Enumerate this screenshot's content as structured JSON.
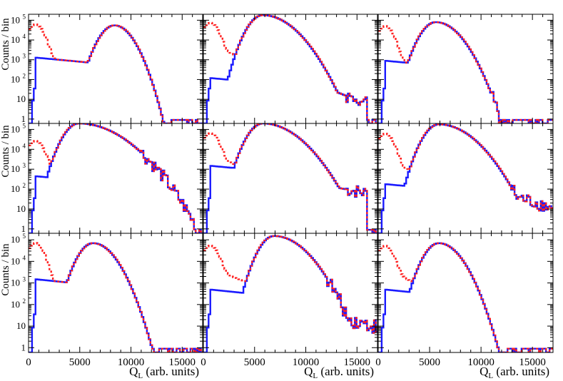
{
  "chart_data": {
    "type": "line",
    "layout": "3x3 grid of step histograms",
    "x_label": "Q",
    "x_label_subscript": "L",
    "x_label_units": "(arb. units)",
    "y_label": "Counts / bin",
    "x_range": [
      0,
      17000
    ],
    "y_scale": "log",
    "y_range": [
      0.6,
      200000
    ],
    "x_ticks": [
      {
        "value": 0,
        "label": "0"
      },
      {
        "value": 5000,
        "label": "5000"
      },
      {
        "value": 10000,
        "label": "10000"
      },
      {
        "value": 15000,
        "label": "15000"
      }
    ],
    "y_ticks": [
      {
        "value": 1,
        "label": "1"
      },
      {
        "value": 10,
        "label": "10"
      },
      {
        "value": 100,
        "label": "10",
        "exponent": "2"
      },
      {
        "value": 1000,
        "label": "10",
        "exponent": "3"
      },
      {
        "value": 10000,
        "label": "10",
        "exponent": "4"
      },
      {
        "value": 100000,
        "label": "10",
        "exponent": "5"
      }
    ],
    "series_colors": {
      "solid": "#1a1aff",
      "dashed": "#ff2222"
    },
    "panels": [
      {
        "peak_x": 8400,
        "peak_y": 55000,
        "right_shape": 0.48,
        "shoulder": null,
        "blue_start": 600,
        "blue_plateau": 1300,
        "red_low_peak": 60000,
        "red_dip": 2000,
        "noise_start": 14000
      },
      {
        "peak_x": 5800,
        "peak_y": 180000,
        "right_shape": 0.82,
        "shoulder": {
          "level": 140,
          "decay": 0.00045,
          "x_start": 9000,
          "x_end": 16000
        },
        "blue_start": 600,
        "blue_plateau": 120,
        "red_low_peak": 70000,
        "red_dip": 4000,
        "noise_start": 14000
      },
      {
        "peak_x": 5600,
        "peak_y": 80000,
        "right_shape": 0.63,
        "shoulder": null,
        "blue_start": 600,
        "blue_plateau": 900,
        "red_low_peak": 50000,
        "red_dip": 1200,
        "noise_start": 11000
      },
      {
        "peak_x": 4900,
        "peak_y": 200000,
        "right_shape": 1.12,
        "shoulder": {
          "level": 220,
          "decay": 0.00032,
          "x_start": 7500,
          "x_end": 12200
        },
        "blue_start": 600,
        "blue_plateau": 450,
        "red_low_peak": 25000,
        "red_dip": 1500,
        "noise_start": 11000
      },
      {
        "peak_x": 5800,
        "peak_y": 200000,
        "right_shape": 0.92,
        "shoulder": {
          "level": 290,
          "decay": 0.00022,
          "x_start": 9000,
          "x_end": 16000
        },
        "blue_start": 600,
        "blue_plateau": 1500,
        "red_low_peak": 60000,
        "red_dip": 4000,
        "noise_start": 14000
      },
      {
        "peak_x": 5900,
        "peak_y": 180000,
        "right_shape": 0.88,
        "shoulder": {
          "level": 150,
          "decay": 0.00034,
          "x_start": 9500,
          "x_end": 17000
        },
        "blue_start": 600,
        "blue_plateau": 180,
        "red_low_peak": 60000,
        "red_dip": 2000,
        "noise_start": 13000
      },
      {
        "peak_x": 6300,
        "peak_y": 70000,
        "right_shape": 0.58,
        "shoulder": null,
        "blue_start": 600,
        "blue_plateau": 1500,
        "red_low_peak": 70000,
        "red_dip": 2000,
        "noise_start": 12000
      },
      {
        "peak_x": 6900,
        "peak_y": 150000,
        "right_shape": 0.82,
        "shoulder": {
          "level": 40,
          "decay": 0.0003,
          "x_start": 12000,
          "x_end": 17000
        },
        "blue_start": 600,
        "blue_plateau": 500,
        "red_low_peak": 50000,
        "red_dip": 4000,
        "noise_start": 12000
      },
      {
        "peak_x": 5900,
        "peak_y": 70000,
        "right_shape": 0.58,
        "shoulder": null,
        "blue_start": 600,
        "blue_plateau": 500,
        "red_low_peak": 50000,
        "red_dip": 3000,
        "noise_start": 12000
      }
    ]
  }
}
